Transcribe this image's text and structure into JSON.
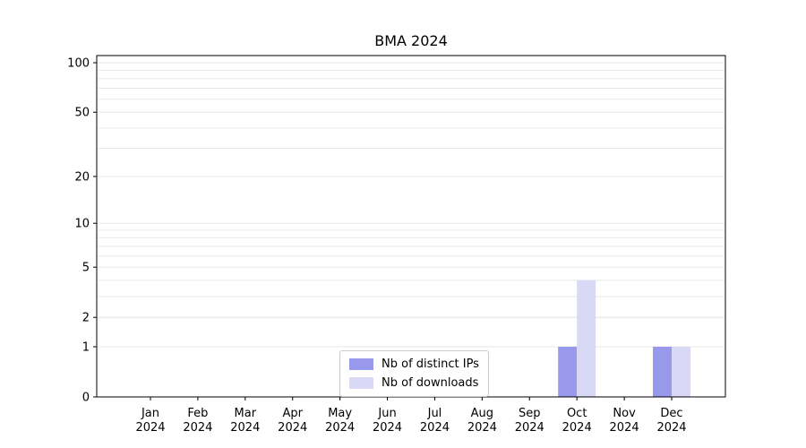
{
  "chart_data": {
    "type": "bar",
    "title": "BMA 2024",
    "categories": [
      "Jan",
      "Feb",
      "Mar",
      "Apr",
      "May",
      "Jun",
      "Jul",
      "Aug",
      "Sep",
      "Oct",
      "Nov",
      "Dec"
    ],
    "year": "2024",
    "series": [
      {
        "name": "Nb of distinct IPs",
        "color": "#9999ec",
        "values": [
          0,
          0,
          0,
          0,
          0,
          0,
          0,
          0,
          0,
          1,
          0,
          1
        ]
      },
      {
        "name": "Nb of downloads",
        "color": "#d9d9f6",
        "values": [
          0,
          0,
          0,
          0,
          0,
          0,
          0,
          0,
          0,
          4,
          0,
          1
        ]
      }
    ],
    "xlabel": "",
    "ylabel": "",
    "yscale": "log1p",
    "ylim": [
      0,
      110
    ],
    "yticks": [
      0,
      1,
      2,
      5,
      10,
      20,
      50,
      100
    ],
    "minor_gridlines": [
      2,
      3,
      4,
      6,
      7,
      8,
      9,
      20,
      30,
      40,
      60,
      70,
      80,
      90
    ],
    "grid": true,
    "legend": {
      "position": "lower-center-inside",
      "entries": [
        "Nb of distinct IPs",
        "Nb of downloads"
      ]
    }
  }
}
